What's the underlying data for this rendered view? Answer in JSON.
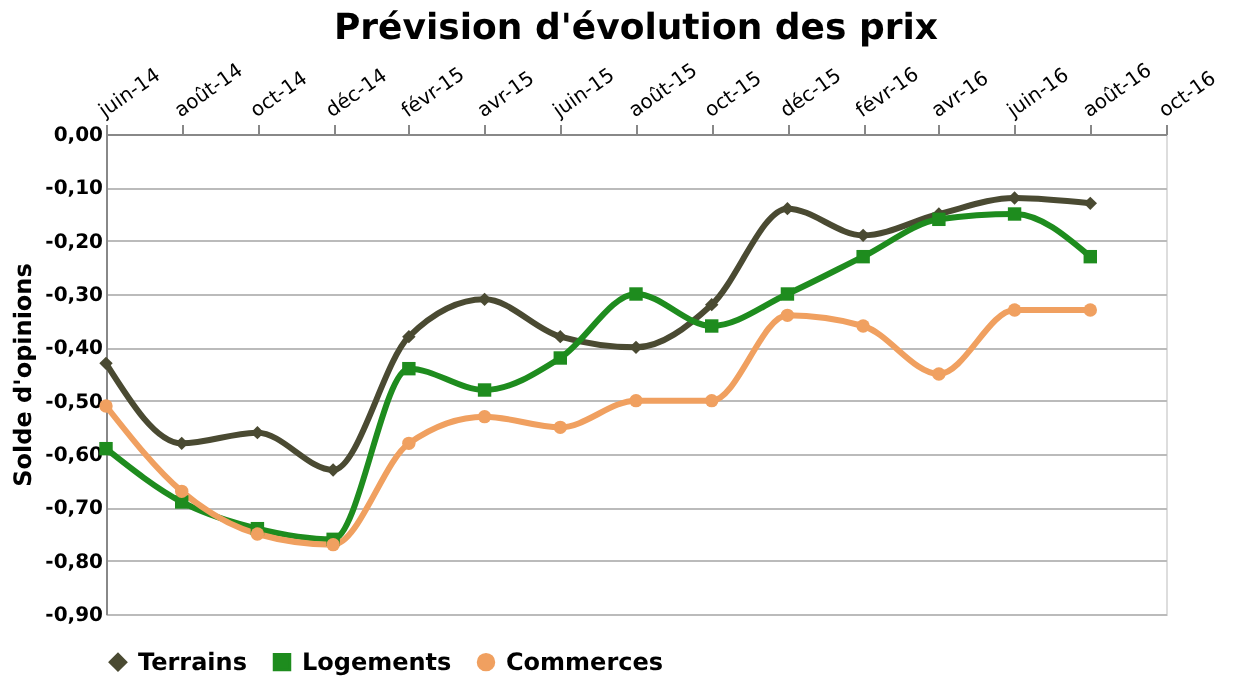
{
  "chart_data": {
    "type": "line",
    "title": "Prévision d'évolution des prix",
    "ylabel": "Solde d'opinions",
    "categories": [
      "juin-14",
      "août-14",
      "oct-14",
      "déc-14",
      "févr-15",
      "avr-15",
      "juin-15",
      "août-15",
      "oct-15",
      "déc-15",
      "févr-16",
      "avr-16",
      "juin-16",
      "août-16",
      "oct-16"
    ],
    "series": [
      {
        "name": "Terrains",
        "color": "#4a4a32",
        "marker": "diamond",
        "values": [
          -0.43,
          -0.58,
          -0.56,
          -0.63,
          -0.38,
          -0.31,
          -0.38,
          -0.4,
          -0.32,
          -0.14,
          -0.19,
          -0.15,
          -0.12,
          -0.13,
          null
        ]
      },
      {
        "name": "Logements",
        "color": "#1e8c1e",
        "marker": "square",
        "values": [
          -0.59,
          -0.69,
          -0.74,
          -0.76,
          -0.44,
          -0.48,
          -0.42,
          -0.3,
          -0.36,
          -0.3,
          -0.23,
          -0.16,
          -0.15,
          -0.23,
          null
        ]
      },
      {
        "name": "Commerces",
        "color": "#f0a060",
        "marker": "circle",
        "values": [
          -0.51,
          -0.67,
          -0.75,
          -0.77,
          -0.58,
          -0.53,
          -0.55,
          -0.5,
          -0.5,
          -0.34,
          -0.36,
          -0.45,
          -0.33,
          -0.33,
          null
        ]
      }
    ],
    "ylim": [
      -0.9,
      0
    ],
    "yticks": [
      {
        "value": -0.9,
        "label": "-0,90"
      },
      {
        "value": -0.8,
        "label": "-0,80"
      },
      {
        "value": -0.7,
        "label": "-0,70"
      },
      {
        "value": -0.6,
        "label": "-0,60"
      },
      {
        "value": -0.5,
        "label": "-0,50"
      },
      {
        "value": -0.4,
        "label": "-0,40"
      },
      {
        "value": -0.3,
        "label": "-0,30"
      },
      {
        "value": -0.2,
        "label": "-0,20"
      },
      {
        "value": -0.1,
        "label": "-0,10"
      },
      {
        "value": 0,
        "label": "0,00"
      }
    ],
    "grid": "y",
    "legend": "bottom",
    "line_style": "solid"
  }
}
